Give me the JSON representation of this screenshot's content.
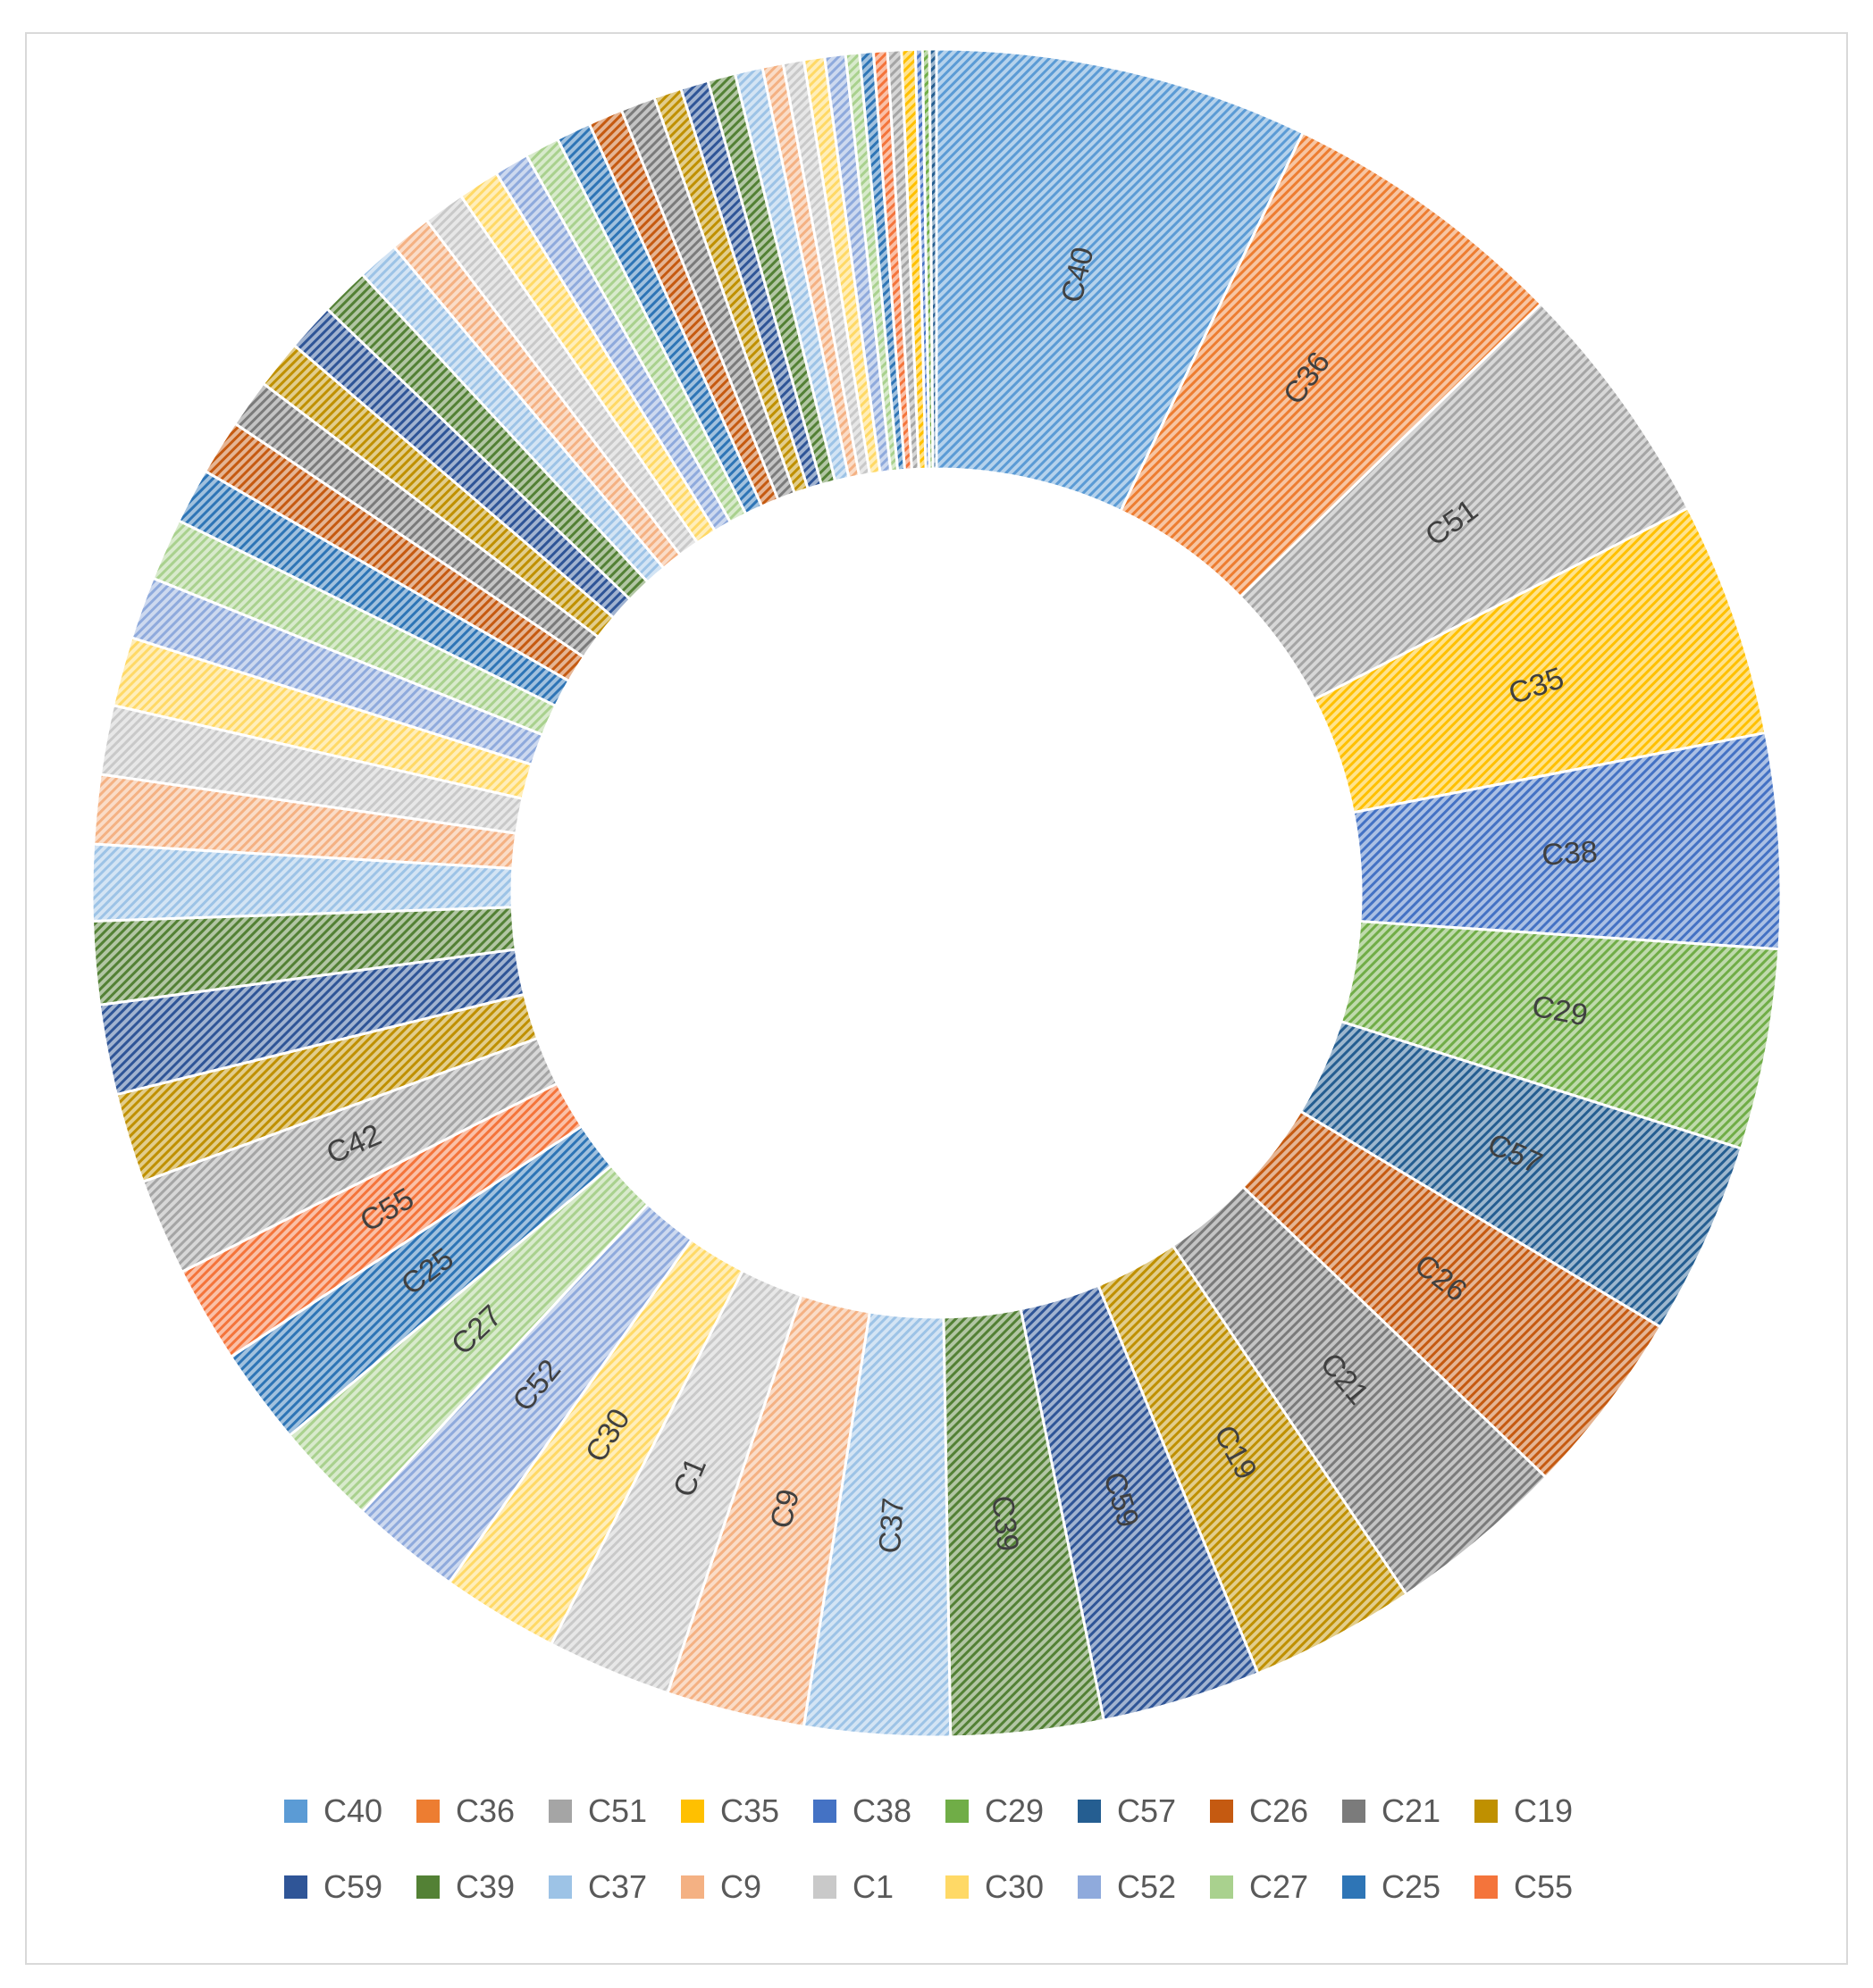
{
  "chart_data": {
    "type": "pie",
    "variant": "donut",
    "title": "",
    "slices": [
      {
        "label": "C40",
        "value": 27,
        "color": "#5b9bd5",
        "shown": true
      },
      {
        "label": "C36",
        "value": 21,
        "color": "#ed7d31",
        "shown": true
      },
      {
        "label": "C51",
        "value": 18,
        "color": "#a5a5a5",
        "shown": true
      },
      {
        "label": "C35",
        "value": 17,
        "color": "#ffc000",
        "shown": true
      },
      {
        "label": "C38",
        "value": 15.5,
        "color": "#4472c4",
        "shown": true
      },
      {
        "label": "C29",
        "value": 14.5,
        "color": "#70ad47",
        "shown": true
      },
      {
        "label": "C57",
        "value": 14,
        "color": "#255e91",
        "shown": true
      },
      {
        "label": "C26",
        "value": 13.5,
        "color": "#c55a11",
        "shown": true
      },
      {
        "label": "C21",
        "value": 13,
        "color": "#7b7b7b",
        "shown": true
      },
      {
        "label": "C19",
        "value": 12,
        "color": "#bf9000",
        "shown": true
      },
      {
        "label": "C59",
        "value": 11.5,
        "color": "#2f5597",
        "shown": true
      },
      {
        "label": "C39",
        "value": 11,
        "color": "#538135",
        "shown": true
      },
      {
        "label": "C37",
        "value": 10.5,
        "color": "#9dc3e6",
        "shown": true
      },
      {
        "label": "C9",
        "value": 10,
        "color": "#f4b183",
        "shown": true
      },
      {
        "label": "C1",
        "value": 9,
        "color": "#c9c9c9",
        "shown": true
      },
      {
        "label": "C30",
        "value": 8.5,
        "color": "#ffd966",
        "shown": true
      },
      {
        "label": "C52",
        "value": 8,
        "color": "#8faadc",
        "shown": true
      },
      {
        "label": "C27",
        "value": 7.5,
        "color": "#a9d18e",
        "shown": true
      },
      {
        "label": "C25",
        "value": 7,
        "color": "#2e75b6",
        "shown": true
      },
      {
        "label": "C55",
        "value": 7,
        "color": "#f4743b",
        "shown": true
      },
      {
        "label": "C42",
        "value": 7,
        "color": "#a5a5a5",
        "shown": true
      },
      {
        "label": "",
        "value": 6.5,
        "color": "#bf9000",
        "shown": false
      },
      {
        "label": "",
        "value": 6.5,
        "color": "#2f5597",
        "shown": false
      },
      {
        "label": "",
        "value": 6,
        "color": "#538135",
        "shown": false
      },
      {
        "label": "",
        "value": 5.5,
        "color": "#9dc3e6",
        "shown": false
      },
      {
        "label": "",
        "value": 5,
        "color": "#f4b183",
        "shown": false
      },
      {
        "label": "",
        "value": 5,
        "color": "#c9c9c9",
        "shown": false
      },
      {
        "label": "",
        "value": 5,
        "color": "#ffd966",
        "shown": false
      },
      {
        "label": "",
        "value": 4.5,
        "color": "#8faadc",
        "shown": false
      },
      {
        "label": "",
        "value": 4.5,
        "color": "#a9d18e",
        "shown": false
      },
      {
        "label": "",
        "value": 4,
        "color": "#2e75b6",
        "shown": false
      },
      {
        "label": "",
        "value": 4,
        "color": "#c55a11",
        "shown": false
      },
      {
        "label": "",
        "value": 3.5,
        "color": "#7b7b7b",
        "shown": false
      },
      {
        "label": "",
        "value": 3.5,
        "color": "#bf9000",
        "shown": false
      },
      {
        "label": "",
        "value": 3.5,
        "color": "#2f5597",
        "shown": false
      },
      {
        "label": "",
        "value": 3.5,
        "color": "#538135",
        "shown": false
      },
      {
        "label": "",
        "value": 3,
        "color": "#9dc3e6",
        "shown": false
      },
      {
        "label": "",
        "value": 3,
        "color": "#f4b183",
        "shown": false
      },
      {
        "label": "",
        "value": 3,
        "color": "#c9c9c9",
        "shown": false
      },
      {
        "label": "",
        "value": 3,
        "color": "#ffd966",
        "shown": false
      },
      {
        "label": "",
        "value": 2.5,
        "color": "#8faadc",
        "shown": false
      },
      {
        "label": "",
        "value": 2.5,
        "color": "#a9d18e",
        "shown": false
      },
      {
        "label": "",
        "value": 2.5,
        "color": "#2e75b6",
        "shown": false
      },
      {
        "label": "",
        "value": 2.5,
        "color": "#c55a11",
        "shown": false
      },
      {
        "label": "",
        "value": 2.5,
        "color": "#7b7b7b",
        "shown": false
      },
      {
        "label": "",
        "value": 2,
        "color": "#bf9000",
        "shown": false
      },
      {
        "label": "",
        "value": 2,
        "color": "#2f5597",
        "shown": false
      },
      {
        "label": "",
        "value": 2,
        "color": "#538135",
        "shown": false
      },
      {
        "label": "",
        "value": 2,
        "color": "#9dc3e6",
        "shown": false
      },
      {
        "label": "",
        "value": 1.5,
        "color": "#f4b183",
        "shown": false
      },
      {
        "label": "",
        "value": 1.5,
        "color": "#c9c9c9",
        "shown": false
      },
      {
        "label": "",
        "value": 1.5,
        "color": "#ffd966",
        "shown": false
      },
      {
        "label": "",
        "value": 1.5,
        "color": "#8faadc",
        "shown": false
      },
      {
        "label": "",
        "value": 1,
        "color": "#a9d18e",
        "shown": false
      },
      {
        "label": "",
        "value": 1,
        "color": "#2e75b6",
        "shown": false
      },
      {
        "label": "",
        "value": 1,
        "color": "#f4743b",
        "shown": false
      },
      {
        "label": "",
        "value": 1,
        "color": "#a5a5a5",
        "shown": false
      },
      {
        "label": "",
        "value": 1,
        "color": "#ffc000",
        "shown": false
      },
      {
        "label": "",
        "value": 0.5,
        "color": "#4472c4",
        "shown": false
      },
      {
        "label": "",
        "value": 0.5,
        "color": "#70ad47",
        "shown": false
      },
      {
        "label": "",
        "value": 0.5,
        "color": "#255e91",
        "shown": false
      }
    ],
    "legend": {
      "placement": "bottom",
      "rows": [
        [
          {
            "label": "C40",
            "color": "#5b9bd5"
          },
          {
            "label": "C36",
            "color": "#ed7d31"
          },
          {
            "label": "C51",
            "color": "#a5a5a5"
          },
          {
            "label": "C35",
            "color": "#ffc000"
          },
          {
            "label": "C38",
            "color": "#4472c4"
          },
          {
            "label": "C29",
            "color": "#70ad47"
          },
          {
            "label": "C57",
            "color": "#255e91"
          },
          {
            "label": "C26",
            "color": "#c55a11"
          },
          {
            "label": "C21",
            "color": "#7b7b7b"
          },
          {
            "label": "C19",
            "color": "#bf9000"
          }
        ],
        [
          {
            "label": "C59",
            "color": "#2f5597"
          },
          {
            "label": "C39",
            "color": "#538135"
          },
          {
            "label": "C37",
            "color": "#9dc3e6"
          },
          {
            "label": "C9",
            "color": "#f4b183"
          },
          {
            "label": "C1",
            "color": "#c9c9c9"
          },
          {
            "label": "C30",
            "color": "#ffd966"
          },
          {
            "label": "C52",
            "color": "#8faadc"
          },
          {
            "label": "C27",
            "color": "#a9d18e"
          },
          {
            "label": "C25",
            "color": "#2e75b6"
          },
          {
            "label": "C55",
            "color": "#f4743b"
          }
        ]
      ]
    }
  }
}
